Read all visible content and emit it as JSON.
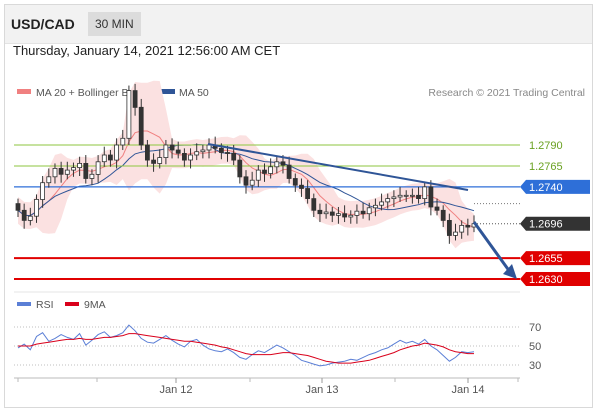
{
  "header": {
    "pair": "USD/CAD",
    "timeframe": "30 MIN"
  },
  "date_line": "Thursday, January 14, 2021 12:56:00 AM CET",
  "legend": {
    "ma_bb": "MA 20 + Bollinger Bands",
    "ma50": "MA 50"
  },
  "credit": "Research © 2021 Trading Central",
  "colors": {
    "ma_bb": "#f08080",
    "ma50": "#2f5597",
    "resistance": "#8cc63f",
    "pivot": "#2e6fd8",
    "support": "#e00000",
    "last": "#333333",
    "rsi": "#5b7fd6",
    "rsi_ma": "#d9001b"
  },
  "chart_data": [
    {
      "type": "candlestick",
      "levels": [
        {
          "label": "1.2790",
          "value": 1.279,
          "kind": "resistance"
        },
        {
          "label": "1.2765",
          "value": 1.2765,
          "kind": "resistance"
        },
        {
          "label": "1.2740",
          "value": 1.274,
          "kind": "pivot"
        },
        {
          "label": "1.2696",
          "value": 1.2696,
          "kind": "last"
        },
        {
          "label": "1.2655",
          "value": 1.2655,
          "kind": "support"
        },
        {
          "label": "1.2630",
          "value": 1.263,
          "kind": "support"
        }
      ],
      "x_ticks": [
        "Jan 12",
        "Jan 13",
        "Jan 14"
      ],
      "closes": [
        1.2712,
        1.27,
        1.2705,
        1.2725,
        1.2745,
        1.2752,
        1.2762,
        1.2755,
        1.276,
        1.2763,
        1.2768,
        1.275,
        1.2755,
        1.277,
        1.2778,
        1.2772,
        1.279,
        1.2798,
        1.2855,
        1.2835,
        1.279,
        1.2772,
        1.2768,
        1.2775,
        1.279,
        1.2784,
        1.278,
        1.2772,
        1.2778,
        1.2782,
        1.2784,
        1.279,
        1.2786,
        1.2781,
        1.278,
        1.2772,
        1.2752,
        1.2742,
        1.2748,
        1.276,
        1.2756,
        1.2764,
        1.277,
        1.2766,
        1.275,
        1.2742,
        1.2738,
        1.2726,
        1.2712,
        1.2708,
        1.271,
        1.2706,
        1.2708,
        1.2704,
        1.2706,
        1.2711,
        1.2708,
        1.2715,
        1.2718,
        1.2722,
        1.2726,
        1.2728,
        1.273,
        1.273,
        1.273,
        1.2726,
        1.274,
        1.2716,
        1.2712,
        1.27,
        1.2682,
        1.2686,
        1.2694,
        1.2692,
        1.2696
      ],
      "annotations": [
        "descending trendline",
        "forecast arrow to 1.2630"
      ]
    },
    {
      "type": "line",
      "title": "",
      "legend": [
        "RSI",
        "9MA"
      ],
      "ticks": [
        70,
        50,
        30
      ],
      "ylim": [
        20,
        80
      ],
      "series": [
        {
          "name": "RSI",
          "values": [
            48,
            52,
            46,
            60,
            64,
            55,
            58,
            62,
            59,
            57,
            63,
            51,
            56,
            62,
            65,
            59,
            61,
            64,
            72,
            66,
            58,
            54,
            53,
            57,
            61,
            56,
            52,
            49,
            55,
            57,
            51,
            47,
            45,
            44,
            47,
            43,
            38,
            36,
            41,
            45,
            43,
            47,
            51,
            48,
            44,
            40,
            35,
            33,
            31,
            29,
            30,
            32,
            33,
            34,
            36,
            35,
            38,
            41,
            43,
            46,
            48,
            52,
            56,
            53,
            55,
            52,
            57,
            50,
            46,
            40,
            34,
            38,
            44,
            43,
            44
          ]
        },
        {
          "name": "9MA",
          "values": [
            50,
            50,
            50,
            52,
            53,
            54,
            55,
            56,
            57,
            57,
            58,
            57,
            57,
            58,
            59,
            59,
            60,
            61,
            63,
            63,
            62,
            61,
            60,
            59,
            58,
            57,
            56,
            55,
            55,
            54,
            53,
            52,
            51,
            49,
            48,
            46,
            44,
            42,
            41,
            41,
            41,
            41,
            42,
            43,
            43,
            42,
            41,
            40,
            38,
            36,
            34,
            33,
            32,
            32,
            32,
            33,
            34,
            35,
            37,
            39,
            41,
            43,
            46,
            48,
            50,
            51,
            53,
            52,
            51,
            49,
            46,
            44,
            43,
            42,
            42
          ]
        }
      ]
    }
  ]
}
